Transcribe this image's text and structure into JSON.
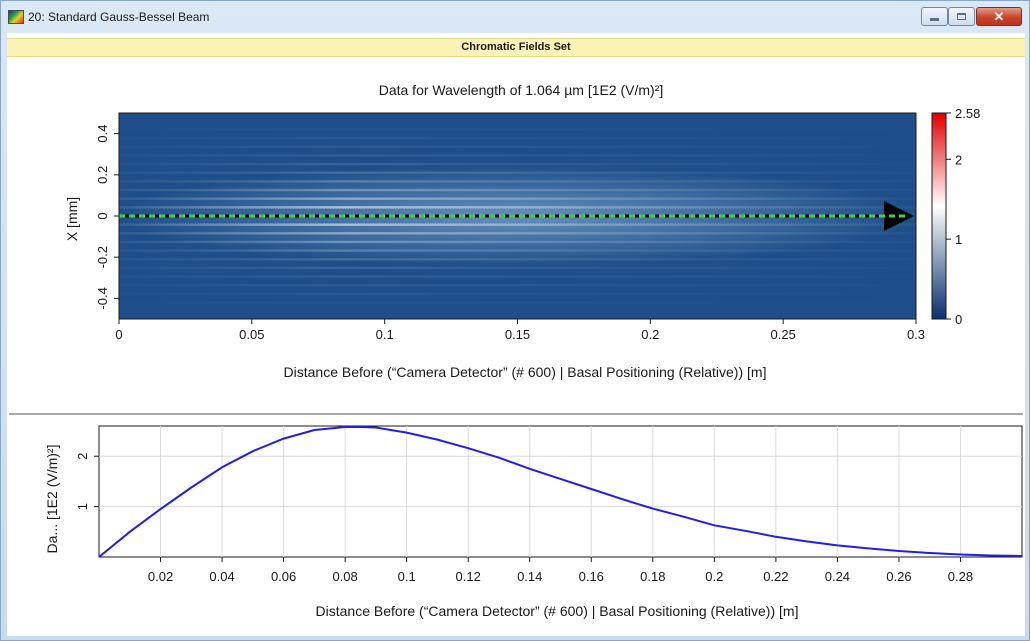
{
  "window": {
    "title": "20: Standard Gauss-Bessel Beam",
    "buttons": {
      "minimize": "minimize",
      "maximize": "maximize",
      "close": "✕"
    }
  },
  "tab": {
    "label": "Chromatic Fields Set"
  },
  "colors": {
    "accent_line": "#1f1fe6",
    "field_background": "#1f4f8a",
    "center_line_green": "#3fd13f",
    "arrow": "#000000"
  },
  "chart_data": [
    {
      "type": "heatmap",
      "title": "Data for Wavelength of 1.064 µm  [1E2 (V/m)²]",
      "xlabel": "Distance Before (“Camera Detector” (# 600) | Basal Positioning (Relative)) [m]",
      "ylabel": "X [mm]",
      "xlim": [
        0,
        0.3
      ],
      "ylim": [
        -0.5,
        0.5
      ],
      "xticks": [
        0,
        0.05,
        0.1,
        0.15,
        0.2,
        0.25,
        0.3
      ],
      "xtick_labels": [
        "0",
        "0.05",
        "0.1",
        "0.15",
        "0.2",
        "0.25",
        "0.3"
      ],
      "yticks": [
        0.4,
        0.2,
        0,
        -0.2,
        -0.4
      ],
      "ytick_labels": [
        "0.4",
        "0.2",
        "0",
        "-0.2",
        "-0.4"
      ],
      "colorbar": {
        "min": 0,
        "max": 2.58,
        "ticks": [
          0,
          1,
          2,
          2.58
        ],
        "tick_labels": [
          "0",
          "1",
          "2",
          "2.58"
        ],
        "colormap": [
          "#08306b",
          "#ffffff",
          "#e00000"
        ]
      },
      "annotation": {
        "type": "arrow",
        "y": 0,
        "x_start": 0,
        "x_end": 0.3,
        "style": "dashed green/black"
      }
    },
    {
      "type": "line",
      "xlabel": "Distance Before (“Camera Detector” (# 600) | Basal Positioning (Relative)) [m]",
      "ylabel": "Da... [1E2 (V/m)²]",
      "xlim": [
        0,
        0.3
      ],
      "ylim": [
        0,
        2.6
      ],
      "xticks": [
        0.02,
        0.04,
        0.06,
        0.08,
        0.1,
        0.12,
        0.14,
        0.16,
        0.18,
        0.2,
        0.22,
        0.24,
        0.26,
        0.28
      ],
      "xtick_labels": [
        "0.02",
        "0.04",
        "0.06",
        "0.08",
        "0.1",
        "0.12",
        "0.14",
        "0.16",
        "0.18",
        "0.2",
        "0.22",
        "0.24",
        "0.26",
        "0.28"
      ],
      "yticks": [
        1,
        2
      ],
      "ytick_labels": [
        "1",
        "2"
      ],
      "grid": true,
      "series": [
        {
          "x": [
            0,
            0.01,
            0.02,
            0.03,
            0.04,
            0.05,
            0.06,
            0.07,
            0.08,
            0.085,
            0.09,
            0.1,
            0.11,
            0.12,
            0.13,
            0.14,
            0.15,
            0.16,
            0.17,
            0.18,
            0.19,
            0.2,
            0.21,
            0.22,
            0.23,
            0.24,
            0.25,
            0.26,
            0.27,
            0.28,
            0.29,
            0.3
          ],
          "y": [
            0,
            0.5,
            0.95,
            1.38,
            1.78,
            2.1,
            2.35,
            2.52,
            2.58,
            2.58,
            2.57,
            2.47,
            2.33,
            2.16,
            1.97,
            1.75,
            1.55,
            1.35,
            1.15,
            0.96,
            0.8,
            0.63,
            0.52,
            0.4,
            0.31,
            0.23,
            0.17,
            0.12,
            0.08,
            0.05,
            0.03,
            0.02
          ]
        }
      ]
    }
  ]
}
